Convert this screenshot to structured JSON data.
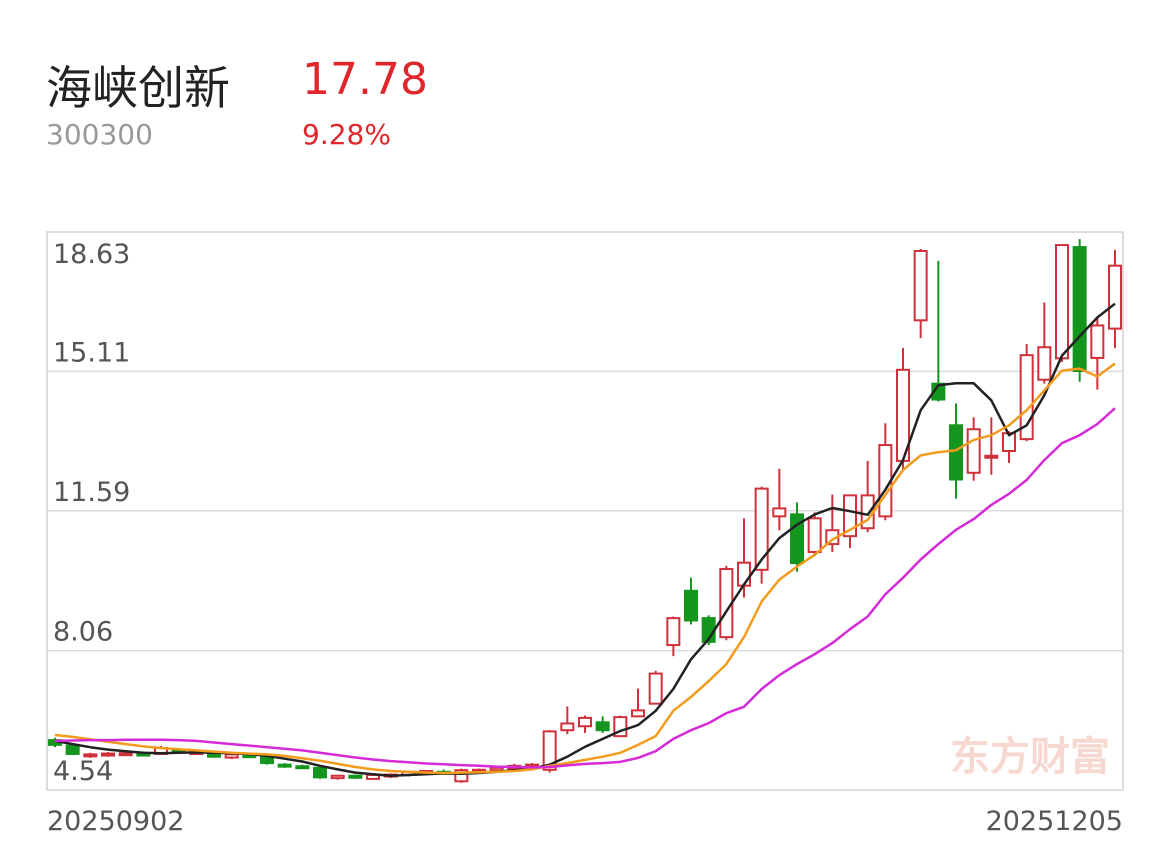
{
  "header": {
    "name": "海峡创新",
    "code": "300300",
    "price": "17.78",
    "change": "9.28%"
  },
  "chart_data": {
    "type": "candlestick",
    "watermark": "东方财富",
    "x_labels": [
      "20250902",
      "20251205"
    ],
    "ylim": [
      4.54,
      18.63
    ],
    "yticks": [
      4.54,
      8.06,
      11.59,
      15.11,
      18.63
    ],
    "grid": true,
    "up_color": "#d0303a",
    "down_color": "#14961e",
    "candles": {
      "open": [
        5.8,
        5.66,
        5.4,
        5.42,
        5.44,
        5.46,
        5.45,
        5.55,
        5.5,
        5.45,
        5.36,
        5.42,
        5.38,
        5.18,
        5.14,
        5.1,
        4.84,
        4.9,
        4.82,
        4.88,
        4.92,
        4.98,
        5.0,
        4.76,
        5.0,
        5.04,
        5.08,
        5.14,
        5.05,
        6.05,
        6.15,
        6.25,
        5.9,
        6.4,
        6.72,
        8.2,
        9.57,
        8.88,
        8.4,
        9.7,
        10.1,
        11.45,
        11.5,
        10.55,
        10.75,
        10.95,
        11.15,
        11.45,
        12.85,
        16.4,
        14.8,
        13.75,
        12.55,
        12.98,
        13.1,
        13.4,
        14.9,
        15.44,
        18.25,
        15.45,
        16.19
      ],
      "high": [
        5.86,
        5.7,
        5.48,
        5.5,
        5.5,
        5.5,
        5.65,
        5.6,
        5.56,
        5.48,
        5.46,
        5.48,
        5.42,
        5.22,
        5.18,
        5.14,
        4.92,
        4.93,
        4.95,
        4.96,
        5.02,
        5.04,
        5.06,
        5.08,
        5.08,
        5.12,
        5.2,
        5.22,
        6.05,
        6.65,
        6.42,
        6.4,
        6.42,
        7.1,
        7.55,
        8.92,
        9.9,
        8.95,
        10.2,
        11.4,
        12.2,
        12.65,
        11.8,
        11.55,
        12.0,
        12.0,
        12.85,
        13.8,
        15.7,
        18.2,
        17.9,
        14.3,
        13.95,
        13.95,
        13.6,
        15.8,
        16.85,
        18.3,
        18.45,
        16.5,
        18.18
      ],
      "low": [
        5.62,
        5.42,
        5.35,
        5.38,
        5.4,
        5.4,
        5.43,
        5.48,
        5.46,
        5.36,
        5.32,
        5.36,
        5.18,
        5.1,
        5.08,
        4.82,
        4.8,
        4.82,
        4.8,
        4.84,
        4.88,
        4.92,
        4.94,
        4.72,
        4.96,
        5.0,
        5.04,
        5.08,
        4.98,
        5.95,
        5.98,
        5.98,
        5.88,
        6.38,
        6.7,
        7.92,
        8.72,
        8.2,
        8.32,
        9.4,
        9.75,
        11.1,
        10.05,
        10.45,
        10.55,
        10.65,
        11.05,
        11.35,
        12.65,
        15.95,
        14.35,
        11.9,
        12.35,
        12.5,
        12.8,
        13.35,
        14.8,
        15.35,
        14.85,
        14.65,
        15.7
      ],
      "close": [
        5.68,
        5.45,
        5.44,
        5.46,
        5.47,
        5.42,
        5.6,
        5.52,
        5.5,
        5.38,
        5.44,
        5.4,
        5.22,
        5.14,
        5.12,
        4.86,
        4.9,
        4.85,
        4.92,
        4.93,
        5.0,
        5.02,
        4.98,
        5.04,
        5.05,
        5.1,
        5.15,
        5.18,
        6.02,
        6.22,
        6.36,
        6.05,
        6.38,
        6.55,
        7.48,
        8.88,
        8.82,
        8.28,
        10.12,
        10.28,
        12.15,
        11.65,
        10.27,
        11.4,
        11.1,
        11.98,
        11.98,
        13.25,
        15.15,
        18.15,
        14.4,
        12.38,
        13.65,
        12.98,
        13.55,
        15.52,
        15.72,
        18.3,
        15.12,
        16.27,
        17.78
      ]
    },
    "series": [
      {
        "name": "MA5",
        "color": "#222222",
        "values": [
          5.78,
          5.7,
          5.62,
          5.56,
          5.52,
          5.48,
          5.47,
          5.48,
          5.49,
          5.48,
          5.47,
          5.45,
          5.4,
          5.33,
          5.26,
          5.15,
          5.06,
          4.98,
          4.94,
          4.9,
          4.92,
          4.94,
          4.96,
          4.95,
          4.97,
          5.0,
          5.04,
          5.08,
          5.18,
          5.38,
          5.63,
          5.83,
          6.03,
          6.18,
          6.54,
          7.09,
          7.84,
          8.35,
          9.05,
          9.73,
          10.36,
          10.9,
          11.24,
          11.5,
          11.66,
          11.58,
          11.49,
          12.12,
          12.87,
          14.13,
          14.76,
          14.81,
          14.81,
          14.38,
          13.5,
          13.75,
          14.51,
          15.51,
          16.0,
          16.47,
          16.82
        ]
      },
      {
        "name": "MA10",
        "color": "#f39b1c",
        "values": [
          5.93,
          5.88,
          5.82,
          5.76,
          5.7,
          5.64,
          5.6,
          5.57,
          5.54,
          5.51,
          5.48,
          5.46,
          5.44,
          5.4,
          5.34,
          5.28,
          5.2,
          5.12,
          5.06,
          5.02,
          5.0,
          4.98,
          4.97,
          4.98,
          4.99,
          5.0,
          5.02,
          5.06,
          5.15,
          5.22,
          5.3,
          5.38,
          5.48,
          5.68,
          5.9,
          6.54,
          6.89,
          7.29,
          7.72,
          8.4,
          9.3,
          9.85,
          10.18,
          10.48,
          10.86,
          11.11,
          11.36,
          11.99,
          12.62,
          12.99,
          13.07,
          13.12,
          13.38,
          13.5,
          13.75,
          14.13,
          14.63,
          15.13,
          15.18,
          14.98,
          15.31
        ]
      },
      {
        "name": "MA20",
        "color": "#d42ad8",
        "values": [
          5.78,
          5.79,
          5.8,
          5.8,
          5.81,
          5.81,
          5.81,
          5.8,
          5.78,
          5.74,
          5.7,
          5.66,
          5.62,
          5.58,
          5.54,
          5.48,
          5.42,
          5.36,
          5.31,
          5.27,
          5.24,
          5.21,
          5.19,
          5.17,
          5.15,
          5.13,
          5.12,
          5.11,
          5.12,
          5.16,
          5.2,
          5.22,
          5.25,
          5.35,
          5.52,
          5.83,
          6.05,
          6.23,
          6.48,
          6.64,
          7.09,
          7.44,
          7.72,
          7.97,
          8.25,
          8.6,
          8.92,
          9.48,
          9.9,
          10.36,
          10.75,
          11.11,
          11.38,
          11.74,
          12.02,
          12.37,
          12.87,
          13.3,
          13.5,
          13.78,
          14.18
        ]
      }
    ]
  }
}
